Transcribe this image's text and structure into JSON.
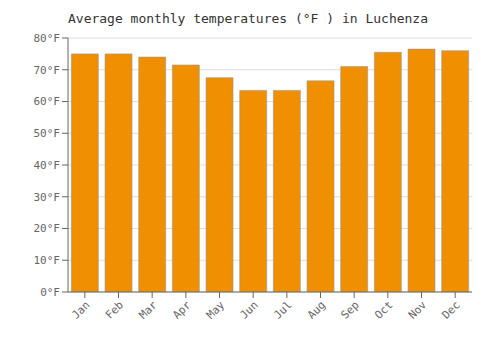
{
  "chart_data": {
    "type": "bar",
    "title": "Average monthly temperatures (°F ) in Luchenza",
    "categories": [
      "Jan",
      "Feb",
      "Mar",
      "Apr",
      "May",
      "Jun",
      "Jul",
      "Aug",
      "Sep",
      "Oct",
      "Nov",
      "Dec"
    ],
    "values": [
      75,
      75,
      74,
      71.5,
      67.5,
      63.5,
      63.5,
      66.5,
      71,
      75.5,
      76.5,
      76
    ],
    "color": "#F09000",
    "ylim": [
      0,
      80
    ],
    "yticks": [
      {
        "value": 0,
        "label": "0°F"
      },
      {
        "value": 10,
        "label": "10°F"
      },
      {
        "value": 20,
        "label": "20°F"
      },
      {
        "value": 30,
        "label": "30°F"
      },
      {
        "value": 40,
        "label": "40°F"
      },
      {
        "value": 50,
        "label": "50°F"
      },
      {
        "value": 60,
        "label": "60°F"
      },
      {
        "value": 70,
        "label": "70°F"
      },
      {
        "value": 80,
        "label": "80°F"
      }
    ],
    "grid": true
  }
}
